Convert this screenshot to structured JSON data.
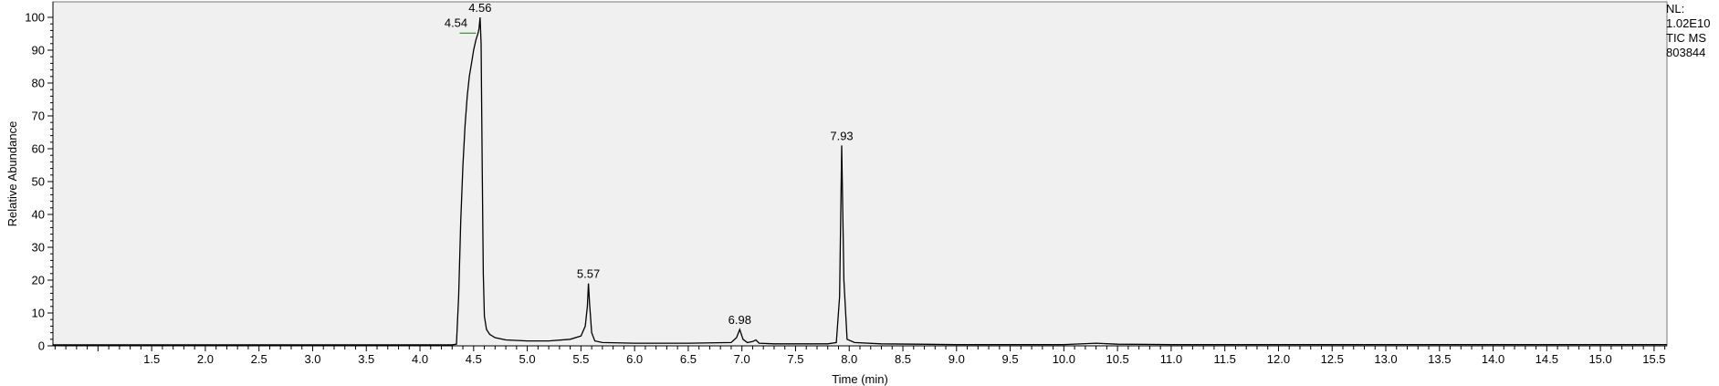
{
  "chart_data": {
    "type": "line",
    "title": "",
    "xlabel": "Time (min)",
    "ylabel": "Relative Abundance",
    "xlim": [
      0.58,
      15.62
    ],
    "ylim": [
      0,
      100
    ],
    "x_ticks": [
      1.5,
      2.0,
      2.5,
      3.0,
      3.5,
      4.0,
      4.5,
      5.0,
      5.5,
      6.0,
      6.5,
      7.0,
      7.5,
      8.0,
      8.5,
      9.0,
      9.5,
      10.0,
      10.5,
      11.0,
      11.5,
      12.0,
      12.5,
      13.0,
      13.5,
      14.0,
      14.5,
      15.0,
      15.5
    ],
    "x_tick_labels": [
      "1.5",
      "2.0",
      "2.5",
      "3.0",
      "3.5",
      "4.0",
      "4.5",
      "5.0",
      "5.5",
      "6.0",
      "6.5",
      "7.0",
      "7.5",
      "8.0",
      "8.5",
      "9.0",
      "9.5",
      "10.0",
      "10.5",
      "11.0",
      "11.5",
      "12.0",
      "12.5",
      "13.0",
      "13.5",
      "14.0",
      "14.5",
      "15.0",
      "15.5"
    ],
    "y_ticks": [
      0,
      10,
      20,
      30,
      40,
      50,
      60,
      70,
      80,
      90,
      100
    ],
    "y_tick_labels": [
      "0",
      "10",
      "20",
      "30",
      "40",
      "50",
      "60",
      "70",
      "80",
      "90",
      "100"
    ],
    "grid": false,
    "legend": "none",
    "line_color": "#000000",
    "background_color": "#f0f0f0",
    "series": [
      {
        "x": [
          0.58,
          4.3,
          4.34,
          4.36,
          4.38,
          4.4,
          4.42,
          4.44,
          4.46,
          4.48,
          4.5,
          4.52,
          4.54,
          4.55,
          4.56,
          4.57,
          4.58,
          4.59,
          4.6,
          4.62,
          4.65,
          4.7,
          4.8,
          5.0,
          5.2,
          5.4,
          5.5,
          5.54,
          5.56,
          5.57,
          5.58,
          5.6,
          5.63,
          5.7,
          6.0,
          6.5,
          6.9,
          6.95,
          6.98,
          7.01,
          7.05,
          7.1,
          7.13,
          7.16,
          7.3,
          7.8,
          7.88,
          7.91,
          7.93,
          7.95,
          7.98,
          8.05,
          8.3,
          9.0,
          10.0,
          10.3,
          10.5,
          11.0,
          12.0,
          13.0,
          14.0,
          15.62
        ],
        "y": [
          0.3,
          0.3,
          0.5,
          15.0,
          38.0,
          55.0,
          67.0,
          76.0,
          82.0,
          86.0,
          90.0,
          93.0,
          95.0,
          96.5,
          100.0,
          92.0,
          55.0,
          22.0,
          9.0,
          5.0,
          3.5,
          2.5,
          1.8,
          1.5,
          1.5,
          2.0,
          3.0,
          6.0,
          12.0,
          19.0,
          13.0,
          4.0,
          1.5,
          1.0,
          0.8,
          0.8,
          1.0,
          2.5,
          5.0,
          2.0,
          1.0,
          1.3,
          1.8,
          0.8,
          0.6,
          0.6,
          1.0,
          15.0,
          61.0,
          20.0,
          2.0,
          1.0,
          0.6,
          0.4,
          0.4,
          0.8,
          0.5,
          0.4,
          0.4,
          0.4,
          0.4,
          0.4
        ]
      }
    ],
    "annotations": [
      {
        "text": "4.56",
        "x": 4.56,
        "y": 100
      },
      {
        "text": "4.54",
        "x": 4.54,
        "y": 96
      },
      {
        "text": "5.57",
        "x": 5.57,
        "y": 19
      },
      {
        "text": "6.98",
        "x": 6.98,
        "y": 5
      },
      {
        "text": "7.93",
        "x": 7.93,
        "y": 61
      }
    ]
  },
  "info_box": {
    "line1": "NL:",
    "line2": "1.02E10",
    "line3": "TIC  MS",
    "line4": "803844"
  }
}
